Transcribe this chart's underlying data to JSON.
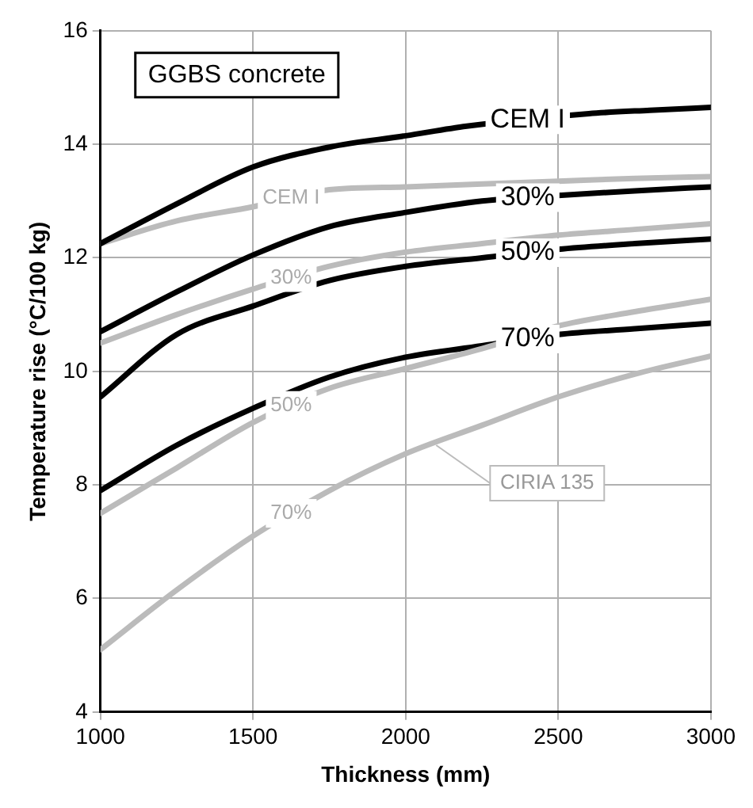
{
  "chart_data": {
    "type": "line",
    "xlabel": "Thickness (mm)",
    "ylabel": "Temperature rise (°C/100 kg)",
    "x": [
      1000,
      1250,
      1500,
      1750,
      2000,
      2250,
      2500,
      2750,
      3000
    ],
    "series": [
      {
        "color": "#000000",
        "x": [
          1000,
          1250,
          1500,
          1750,
          2000,
          2200,
          2600,
          2800,
          3000
        ],
        "values": [
          12.25,
          12.95,
          13.6,
          13.95,
          14.15,
          14.32,
          14.54,
          14.6,
          14.65
        ]
      },
      {
        "color": "#bbbbbb",
        "values": [
          12.25,
          12.65,
          12.9,
          13.2,
          13.25,
          13.3,
          13.35,
          13.4,
          13.43
        ]
      },
      {
        "color": "#000000",
        "values": [
          10.7,
          11.4,
          12.05,
          12.55,
          12.8,
          13.0,
          13.1,
          13.18,
          13.25
        ]
      },
      {
        "color": "#bbbbbb",
        "values": [
          10.5,
          11.0,
          11.45,
          11.85,
          12.1,
          12.25,
          12.4,
          12.5,
          12.6
        ]
      },
      {
        "color": "#000000",
        "values": [
          9.55,
          10.65,
          11.15,
          11.6,
          11.85,
          12.0,
          12.15,
          12.25,
          12.33
        ]
      },
      {
        "color": "#bbbbbb",
        "values": [
          7.5,
          8.3,
          9.1,
          9.7,
          10.05,
          10.4,
          10.8,
          11.05,
          11.27
        ]
      },
      {
        "color": "#000000",
        "values": [
          7.9,
          8.7,
          9.35,
          9.9,
          10.25,
          10.45,
          10.65,
          10.75,
          10.85
        ]
      },
      {
        "color": "#bbbbbb",
        "values": [
          5.1,
          6.15,
          7.1,
          7.9,
          8.55,
          9.05,
          9.55,
          9.95,
          10.27
        ]
      }
    ],
    "xlim": [
      1000,
      3000
    ],
    "xticks": [
      1000,
      1500,
      2000,
      2500,
      3000
    ],
    "ylim": [
      4,
      16
    ],
    "yticks": [
      4,
      6,
      8,
      10,
      12,
      14,
      16
    ],
    "grid": true,
    "legend": false,
    "marker": "none",
    "line_style": "solid",
    "annotations": [
      "GGBS concrete",
      {
        "text": "CEM I",
        "x": 2400,
        "y": 14.43
      },
      {
        "text": "30%",
        "x": 2400,
        "y": 13.06
      },
      {
        "text": "50%",
        "x": 2400,
        "y": 12.09
      },
      {
        "text": "70%",
        "x": 2400,
        "y": 10.57
      },
      {
        "text": "CEM I",
        "x": 1625,
        "y": 13.05
      },
      {
        "text": "30%",
        "x": 1625,
        "y": 11.65
      },
      {
        "text": "50%",
        "x": 1625,
        "y": 9.4
      },
      {
        "text": "70%",
        "x": 1625,
        "y": 7.5
      },
      {
        "text": "CIRIA 135",
        "x": 2100,
        "y": 8.7
      }
    ]
  }
}
